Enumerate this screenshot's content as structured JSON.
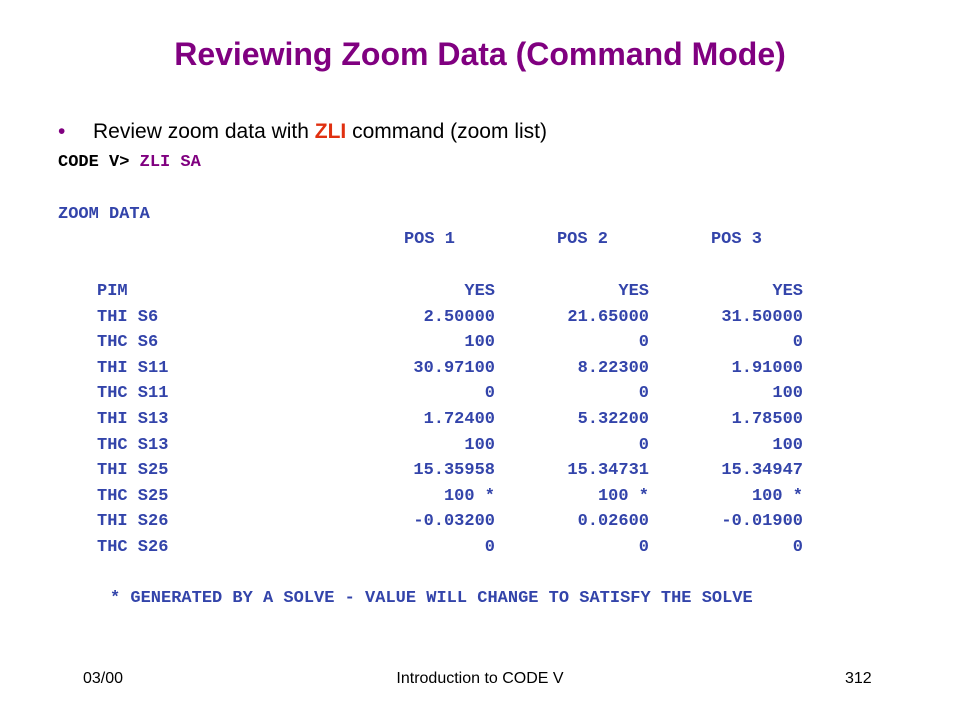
{
  "colors": {
    "title": "#800080",
    "blue": "#3344aa",
    "red": "#e03010",
    "purple": "#800080",
    "bullet": "#800080"
  },
  "title": "Reviewing Zoom Data (Command Mode)",
  "bullet": {
    "marker": "•",
    "before": "Review zoom data with ",
    "highlight": "ZLI",
    "after": " command (zoom list)"
  },
  "command": {
    "prompt": "CODE V> ",
    "text": "ZLI SA"
  },
  "zoom_heading": "ZOOM DATA",
  "positions": [
    "POS 1",
    "POS 2",
    "POS 3"
  ],
  "rows": [
    {
      "label": "PIM",
      "values": [
        "YES",
        "YES",
        "YES"
      ]
    },
    {
      "label": "THI S6",
      "values": [
        "2.50000",
        "21.65000",
        "31.50000"
      ]
    },
    {
      "label": "THC S6",
      "values": [
        "100",
        "0",
        "0"
      ]
    },
    {
      "label": "THI S11",
      "values": [
        "30.97100",
        "8.22300",
        "1.91000"
      ]
    },
    {
      "label": "THC S11",
      "values": [
        "0",
        "0",
        "100"
      ]
    },
    {
      "label": "THI S13",
      "values": [
        "1.72400",
        "5.32200",
        "1.78500"
      ]
    },
    {
      "label": "THC S13",
      "values": [
        "100",
        "0",
        "100"
      ]
    },
    {
      "label": "THI S25",
      "values": [
        "15.35958",
        "15.34731",
        "15.34947"
      ]
    },
    {
      "label": "THC S25",
      "values": [
        "100 *",
        "100 *",
        "100 *"
      ]
    },
    {
      "label": "THI S26",
      "values": [
        "-0.03200",
        "0.02600",
        "-0.01900"
      ]
    },
    {
      "label": "THC S26",
      "values": [
        "0",
        "0",
        "0"
      ]
    }
  ],
  "footnote": "* GENERATED BY A SOLVE - VALUE WILL CHANGE TO SATISFY THE SOLVE",
  "footer": {
    "date": "03/00",
    "center": "Introduction to CODE V",
    "page": "312"
  }
}
